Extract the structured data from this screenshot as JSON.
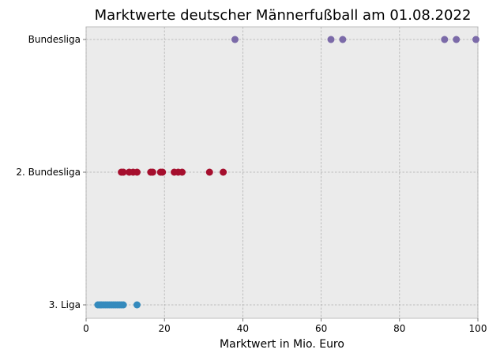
{
  "chart_data": {
    "type": "scatter",
    "title": "Marktwerte deutscher Männerfußball am 01.08.2022",
    "xlabel": "Marktwert in Mio. Euro",
    "ylabel": "",
    "xlim": [
      0,
      100
    ],
    "x_ticks": [
      "0",
      "20",
      "40",
      "60",
      "80",
      "100"
    ],
    "x_tick_values": [
      0,
      20,
      40,
      60,
      80,
      100
    ],
    "categories": [
      "3. Liga",
      "2. Bundesliga",
      "Bundesliga"
    ],
    "grid": true,
    "series": [
      {
        "category": "Bundesliga",
        "color": "#7b6aa8",
        "x": [
          38,
          62.5,
          65.5,
          91.5,
          94.5,
          99.5
        ]
      },
      {
        "category": "2. Bundesliga",
        "color": "#a50e2d",
        "x": [
          9,
          9.5,
          11,
          12,
          13,
          16.5,
          17,
          19,
          19.5,
          22.5,
          23.5,
          24.5,
          31.5,
          35
        ]
      },
      {
        "category": "3. Liga",
        "color": "#348abd",
        "x": [
          3,
          3.5,
          4,
          4.5,
          5,
          5.5,
          6,
          6.5,
          7,
          7.5,
          8,
          8.5,
          9,
          9.5,
          13
        ]
      }
    ]
  }
}
